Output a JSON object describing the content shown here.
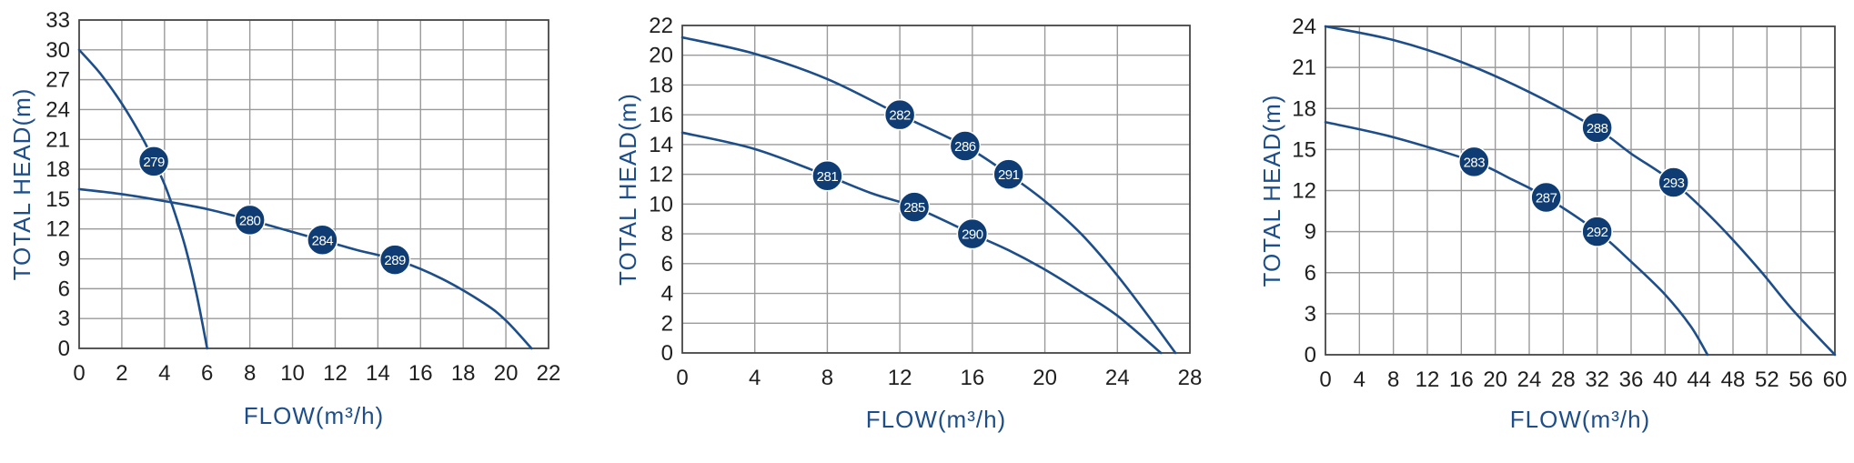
{
  "colors": {
    "curve": "#1d4e89",
    "marker": "#0f3d73",
    "grid": "#9a9a9a",
    "frame": "#4a4a4a",
    "axis_title": "#1d4e89",
    "tick_text": "#1f1f1f"
  },
  "chart_data": [
    {
      "type": "line",
      "xlabel": "FLOW(m³/h)",
      "ylabel": "TOTAL HEAD(m)",
      "xlim": [
        0,
        22
      ],
      "ylim": [
        0,
        33
      ],
      "x_ticks": [
        0,
        2,
        4,
        6,
        8,
        10,
        12,
        14,
        16,
        18,
        20,
        22
      ],
      "y_ticks": [
        0,
        3,
        6,
        9,
        12,
        15,
        18,
        21,
        24,
        27,
        30,
        33
      ],
      "grid": true,
      "curves": [
        {
          "points": [
            [
              0,
              30
            ],
            [
              1,
              27.6
            ],
            [
              2,
              24.6
            ],
            [
              3,
              21
            ],
            [
              3.5,
              18.8
            ],
            [
              4,
              16.5
            ],
            [
              4.5,
              13.5
            ],
            [
              5,
              10
            ],
            [
              5.5,
              5.5
            ],
            [
              6,
              0
            ]
          ]
        },
        {
          "points": [
            [
              0,
              16
            ],
            [
              2,
              15.5
            ],
            [
              4,
              14.8
            ],
            [
              6,
              14
            ],
            [
              8,
              12.9
            ],
            [
              10,
              11.7
            ],
            [
              11.5,
              10.8
            ],
            [
              13,
              9.9
            ],
            [
              15,
              8.8
            ],
            [
              17,
              7
            ],
            [
              19,
              4.5
            ],
            [
              20,
              2.8
            ],
            [
              21.2,
              0
            ]
          ]
        }
      ],
      "markers": [
        {
          "label": "279",
          "x": 3.5,
          "y": 18.8
        },
        {
          "label": "280",
          "x": 8,
          "y": 12.9
        },
        {
          "label": "284",
          "x": 11.4,
          "y": 10.9
        },
        {
          "label": "289",
          "x": 14.8,
          "y": 8.9
        }
      ]
    },
    {
      "type": "line",
      "xlabel": "FLOW(m³/h)",
      "ylabel": "TOTAL HEAD(m)",
      "xlim": [
        0,
        28
      ],
      "ylim": [
        0,
        22
      ],
      "x_ticks": [
        0,
        4,
        8,
        12,
        16,
        20,
        24,
        28
      ],
      "y_ticks": [
        0,
        2,
        4,
        6,
        8,
        10,
        12,
        14,
        16,
        18,
        20,
        22
      ],
      "grid": true,
      "curves": [
        {
          "points": [
            [
              0,
              21.2
            ],
            [
              4,
              20.1
            ],
            [
              8,
              18.4
            ],
            [
              12,
              16
            ],
            [
              15.6,
              13.9
            ],
            [
              18,
              12
            ],
            [
              20,
              10.2
            ],
            [
              22,
              8
            ],
            [
              24,
              5.2
            ],
            [
              26,
              2
            ],
            [
              27.2,
              0
            ]
          ]
        },
        {
          "points": [
            [
              0,
              14.8
            ],
            [
              4,
              13.7
            ],
            [
              8,
              11.9
            ],
            [
              10.5,
              10.7
            ],
            [
              12.8,
              9.8
            ],
            [
              16,
              8
            ],
            [
              18,
              6.9
            ],
            [
              20,
              5.6
            ],
            [
              22,
              4.1
            ],
            [
              24,
              2.5
            ],
            [
              26.4,
              0
            ]
          ]
        }
      ],
      "markers": [
        {
          "label": "282",
          "x": 12,
          "y": 16
        },
        {
          "label": "286",
          "x": 15.6,
          "y": 13.9
        },
        {
          "label": "291",
          "x": 18,
          "y": 12
        },
        {
          "label": "281",
          "x": 8,
          "y": 11.9
        },
        {
          "label": "285",
          "x": 12.8,
          "y": 9.8
        },
        {
          "label": "290",
          "x": 16,
          "y": 8
        }
      ]
    },
    {
      "type": "line",
      "xlabel": "FLOW(m³/h)",
      "ylabel": "TOTAL HEAD(m)",
      "xlim": [
        0,
        60
      ],
      "ylim": [
        0,
        24
      ],
      "x_ticks": [
        0,
        4,
        8,
        12,
        16,
        20,
        24,
        28,
        32,
        36,
        40,
        44,
        48,
        52,
        56,
        60
      ],
      "y_ticks": [
        0,
        3,
        6,
        9,
        12,
        15,
        18,
        21,
        24
      ],
      "grid": true,
      "curves": [
        {
          "points": [
            [
              0,
              24
            ],
            [
              8,
              23
            ],
            [
              16,
              21.4
            ],
            [
              24,
              19.2
            ],
            [
              32,
              16.5
            ],
            [
              36,
              14.7
            ],
            [
              41,
              12.6
            ],
            [
              46,
              9.7
            ],
            [
              51,
              6.3
            ],
            [
              55,
              3.3
            ],
            [
              60,
              0
            ]
          ]
        },
        {
          "points": [
            [
              0,
              17
            ],
            [
              8,
              15.9
            ],
            [
              17.5,
              14.1
            ],
            [
              22,
              12.8
            ],
            [
              26,
              11.5
            ],
            [
              32,
              9
            ],
            [
              36,
              6.8
            ],
            [
              40,
              4.4
            ],
            [
              43,
              2.1
            ],
            [
              45,
              0
            ]
          ]
        }
      ],
      "markers": [
        {
          "label": "288",
          "x": 32,
          "y": 16.6
        },
        {
          "label": "293",
          "x": 41,
          "y": 12.6
        },
        {
          "label": "283",
          "x": 17.5,
          "y": 14.1
        },
        {
          "label": "287",
          "x": 26,
          "y": 11.5
        },
        {
          "label": "292",
          "x": 32,
          "y": 9
        }
      ]
    }
  ]
}
